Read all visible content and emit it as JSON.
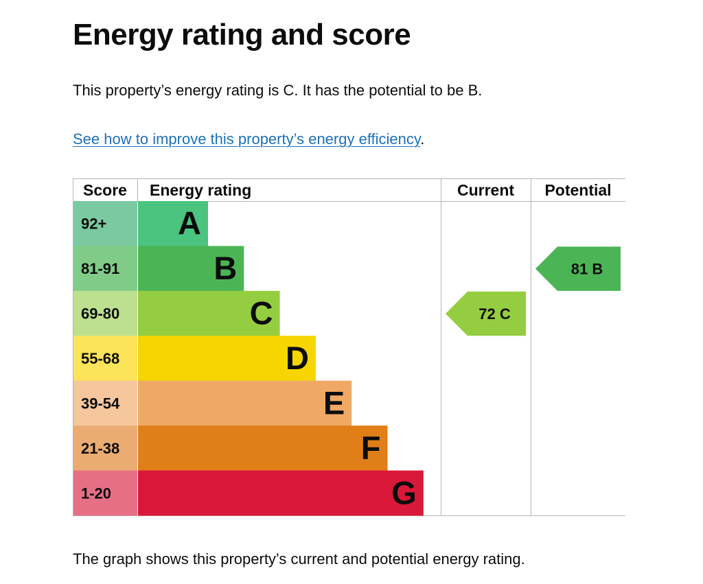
{
  "page": {
    "title": "Energy rating and score",
    "summary": "This property’s energy rating is C. It has the potential to be B.",
    "improve_link": "See how to improve this property’s energy efficiency",
    "improve_suffix": ".",
    "caption": "The graph shows this property’s current and potential energy rating."
  },
  "chart_data": {
    "type": "bar",
    "headers": {
      "score": "Score",
      "rating": "Energy rating",
      "current": "Current",
      "potential": "Potential"
    },
    "bands": [
      {
        "letter": "A",
        "range": "92+",
        "color": "#4ac47e",
        "score_color": "#7bc9a0"
      },
      {
        "letter": "B",
        "range": "81-91",
        "color": "#4bb555",
        "score_color": "#80cb88"
      },
      {
        "letter": "C",
        "range": "69-80",
        "color": "#95cd40",
        "score_color": "#bde08f"
      },
      {
        "letter": "D",
        "range": "55-68",
        "color": "#f6d500",
        "score_color": "#fbe35a"
      },
      {
        "letter": "E",
        "range": "39-54",
        "color": "#f0a964",
        "score_color": "#f6c69d"
      },
      {
        "letter": "F",
        "range": "21-38",
        "color": "#e07e18",
        "score_color": "#ebac72"
      },
      {
        "letter": "G",
        "range": "1-20",
        "color": "#da1839",
        "score_color": "#e66f86"
      }
    ],
    "current": {
      "score": 72,
      "band": "C",
      "label": "72 C",
      "color": "#95cd40"
    },
    "potential": {
      "score": 81,
      "band": "B",
      "label": "81 B",
      "color": "#4bb555"
    },
    "grid": true,
    "legend": "none"
  }
}
